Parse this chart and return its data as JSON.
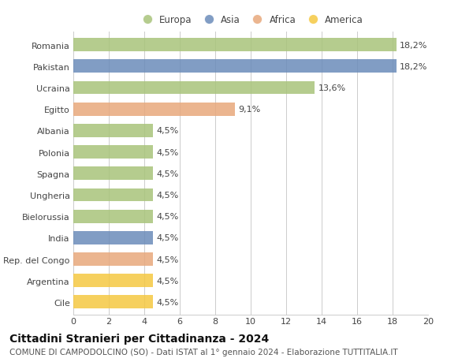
{
  "categories": [
    "Romania",
    "Pakistan",
    "Ucraina",
    "Egitto",
    "Albania",
    "Polonia",
    "Spagna",
    "Ungheria",
    "Bielorussia",
    "India",
    "Rep. del Congo",
    "Argentina",
    "Cile"
  ],
  "values": [
    18.2,
    18.2,
    13.6,
    9.1,
    4.5,
    4.5,
    4.5,
    4.5,
    4.5,
    4.5,
    4.5,
    4.5,
    4.5
  ],
  "labels": [
    "18,2%",
    "18,2%",
    "13,6%",
    "9,1%",
    "4,5%",
    "4,5%",
    "4,5%",
    "4,5%",
    "4,5%",
    "4,5%",
    "4,5%",
    "4,5%",
    "4,5%"
  ],
  "colors": [
    "#a8c47a",
    "#6b8cba",
    "#a8c47a",
    "#e8a87c",
    "#a8c47a",
    "#a8c47a",
    "#a8c47a",
    "#a8c47a",
    "#a8c47a",
    "#6b8cba",
    "#e8a87c",
    "#f5c842",
    "#f5c842"
  ],
  "legend_labels": [
    "Europa",
    "Asia",
    "Africa",
    "America"
  ],
  "legend_colors": [
    "#a8c47a",
    "#6b8cba",
    "#e8a87c",
    "#f5c842"
  ],
  "title": "Cittadini Stranieri per Cittadinanza - 2024",
  "subtitle": "COMUNE DI CAMPODOLCINO (SO) - Dati ISTAT al 1° gennaio 2024 - Elaborazione TUTTITALIA.IT",
  "xlim": [
    0,
    20
  ],
  "xticks": [
    0,
    2,
    4,
    6,
    8,
    10,
    12,
    14,
    16,
    18,
    20
  ],
  "bg_color": "#ffffff",
  "grid_color": "#cccccc",
  "bar_height": 0.62,
  "title_fontsize": 10,
  "subtitle_fontsize": 7.5,
  "tick_fontsize": 8,
  "label_fontsize": 8
}
